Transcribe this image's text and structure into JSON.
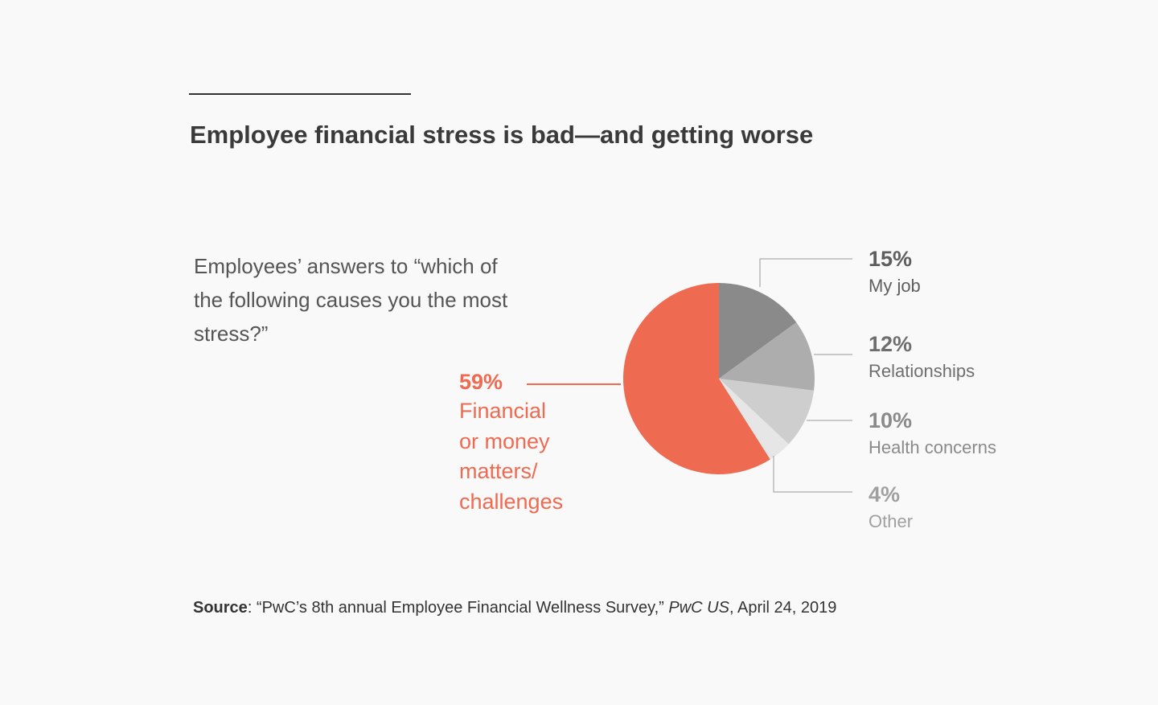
{
  "chart_data": {
    "type": "pie",
    "title": "Employee financial stress is bad—and getting worse",
    "subtitle": "Employees’ answers to “which of the following causes you the most stress?”",
    "slices": [
      {
        "label": "My job",
        "pct_text": "15%",
        "value": 15,
        "color": "#8a8a8a",
        "text_color": "#5e5e5e"
      },
      {
        "label": "Relationships",
        "pct_text": "12%",
        "value": 12,
        "color": "#adadad",
        "text_color": "#6e6e6e"
      },
      {
        "label": "Health concerns",
        "pct_text": "10%",
        "value": 10,
        "color": "#cecece",
        "text_color": "#8a8a8a"
      },
      {
        "label": "Other",
        "pct_text": "4%",
        "value": 4,
        "color": "#e6e6e6",
        "text_color": "#a0a0a0"
      },
      {
        "label": "Financial or money matters/ challenges",
        "label_lines": [
          "Financial",
          "or money",
          "matters/",
          "challenges"
        ],
        "pct_text": "59%",
        "value": 59,
        "color": "#ee6a50",
        "text_color": "#ee6a50"
      }
    ],
    "legend": "none (direct labels)"
  },
  "source": {
    "label": "Source",
    "text_before": ": “PwC’s 8th annual Employee Financial Wellness Survey,” ",
    "publication": "PwC US",
    "text_after": ", April 24, 2019"
  },
  "colors": {
    "background": "#f9f9f9",
    "accent": "#ee6a50",
    "leader_line": "#999999"
  }
}
